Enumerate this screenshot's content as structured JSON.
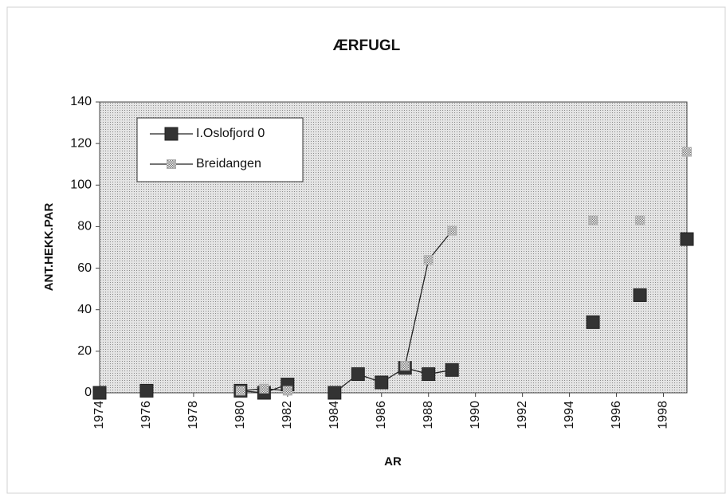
{
  "chart_data": {
    "type": "line",
    "title": "ÆRFUGL",
    "x_label": "AR",
    "y_label": "ANT.HEKK.PAR",
    "x": [
      1974,
      1975,
      1976,
      1977,
      1978,
      1979,
      1980,
      1981,
      1982,
      1983,
      1984,
      1985,
      1986,
      1987,
      1988,
      1989,
      1990,
      1991,
      1992,
      1993,
      1994,
      1995,
      1996,
      1997,
      1998,
      1999
    ],
    "series": [
      {
        "name": "I.Oslofjord 0",
        "color": "#333333",
        "values": [
          0,
          null,
          1,
          null,
          null,
          null,
          1,
          0,
          4,
          null,
          0,
          9,
          5,
          12,
          9,
          11,
          null,
          null,
          null,
          null,
          null,
          34,
          null,
          47,
          null,
          74
        ]
      },
      {
        "name": "Breidangen",
        "color": "#b0b0b0",
        "values": [
          null,
          null,
          null,
          null,
          null,
          null,
          1,
          2,
          1,
          null,
          null,
          null,
          null,
          13,
          64,
          78,
          null,
          null,
          null,
          null,
          null,
          83,
          null,
          83,
          null,
          116
        ]
      }
    ],
    "xlim": [
      1974,
      1999
    ],
    "xticks": [
      1974,
      1976,
      1978,
      1980,
      1982,
      1984,
      1986,
      1988,
      1990,
      1992,
      1994,
      1996,
      1998
    ],
    "ylim": [
      0,
      140
    ],
    "yticks": [
      0,
      20,
      40,
      60,
      80,
      100,
      120,
      140
    ],
    "legend": "upper left"
  }
}
